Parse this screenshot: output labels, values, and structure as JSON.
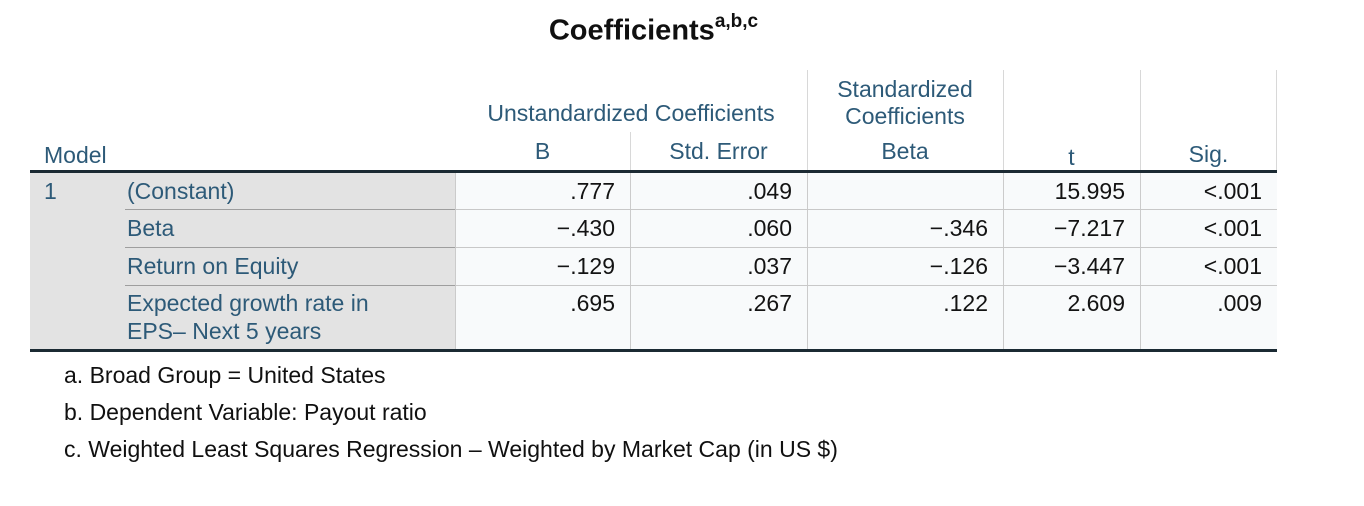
{
  "title": {
    "text": "Coefficients",
    "superscript": "a,b,c"
  },
  "table": {
    "stub_header": "Model",
    "model_number": "1",
    "col_groups": {
      "unstandardized": "Unstandardized Coefficients",
      "standardized": "Standardized Coefficients"
    },
    "columns": {
      "b": "B",
      "std_error": "Std. Error",
      "beta": "Beta",
      "t": "t",
      "sig": "Sig."
    },
    "rows": [
      {
        "label": "(Constant)",
        "b": ".777",
        "std_error": ".049",
        "beta": "",
        "t": "15.995",
        "sig": "<.001"
      },
      {
        "label": "Beta",
        "b": "−.430",
        "std_error": ".060",
        "beta": "−.346",
        "t": "−7.217",
        "sig": "<.001"
      },
      {
        "label": "Return on Equity",
        "b": "−.129",
        "std_error": ".037",
        "beta": "−.126",
        "t": "−3.447",
        "sig": "<.001"
      },
      {
        "label": "Expected growth rate in EPS– Next 5 years",
        "b": ".695",
        "std_error": ".267",
        "beta": ".122",
        "t": "2.609",
        "sig": ".009"
      }
    ]
  },
  "footnotes": [
    "a. Broad Group = United States",
    "b. Dependent Variable: Payout ratio",
    "c. Weighted Least Squares Regression – Weighted by Market Cap (in US $)"
  ],
  "colors": {
    "header_text": "#2d5a78",
    "rule_dark": "#1b2a33",
    "stub_background": "#e3e3e3",
    "data_background": "#f8fafb",
    "grid_light": "#cbcbcb"
  }
}
